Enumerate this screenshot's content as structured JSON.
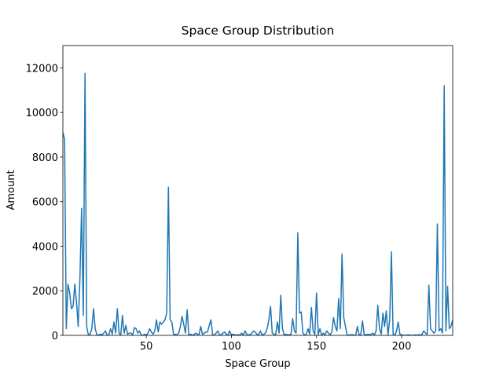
{
  "chart_data": {
    "type": "line",
    "title": "Space Group Distribution",
    "x_label": "Space Group",
    "y_label": "Amount",
    "x": [
      1,
      2,
      3,
      4,
      5,
      6,
      7,
      8,
      9,
      10,
      11,
      12,
      13,
      14,
      15,
      16,
      17,
      18,
      19,
      20,
      21,
      22,
      23,
      24,
      25,
      26,
      27,
      28,
      29,
      30,
      31,
      32,
      33,
      34,
      35,
      36,
      37,
      38,
      39,
      40,
      41,
      42,
      43,
      44,
      45,
      46,
      47,
      48,
      49,
      50,
      51,
      52,
      53,
      54,
      55,
      56,
      57,
      58,
      59,
      60,
      61,
      62,
      63,
      64,
      65,
      66,
      67,
      68,
      69,
      70,
      71,
      72,
      73,
      74,
      75,
      76,
      77,
      78,
      79,
      80,
      81,
      82,
      83,
      84,
      85,
      86,
      87,
      88,
      89,
      90,
      91,
      92,
      93,
      94,
      95,
      96,
      97,
      98,
      99,
      100,
      101,
      102,
      103,
      104,
      105,
      106,
      107,
      108,
      109,
      110,
      111,
      112,
      113,
      114,
      115,
      116,
      117,
      118,
      119,
      120,
      121,
      122,
      123,
      124,
      125,
      126,
      127,
      128,
      129,
      130,
      131,
      132,
      133,
      134,
      135,
      136,
      137,
      138,
      139,
      140,
      141,
      142,
      143,
      144,
      145,
      146,
      147,
      148,
      149,
      150,
      151,
      152,
      153,
      154,
      155,
      156,
      157,
      158,
      159,
      160,
      161,
      162,
      163,
      164,
      165,
      166,
      167,
      168,
      169,
      170,
      171,
      172,
      173,
      174,
      175,
      176,
      177,
      178,
      179,
      180,
      181,
      182,
      183,
      184,
      185,
      186,
      187,
      188,
      189,
      190,
      191,
      192,
      193,
      194,
      195,
      196,
      197,
      198,
      199,
      200,
      201,
      202,
      203,
      204,
      205,
      206,
      207,
      208,
      209,
      210,
      211,
      212,
      213,
      214,
      215,
      216,
      217,
      218,
      219,
      220,
      221,
      222,
      223,
      224,
      225,
      226,
      227,
      228,
      229,
      230
    ],
    "series": [
      {
        "color": "#1f77b4",
        "values": [
          9100,
          8800,
          300,
          2300,
          1900,
          1200,
          1300,
          2300,
          1500,
          400,
          2500,
          5700,
          900,
          11750,
          400,
          10,
          50,
          300,
          1200,
          300,
          20,
          10,
          50,
          30,
          100,
          200,
          10,
          20,
          300,
          50,
          600,
          100,
          1200,
          100,
          20,
          900,
          100,
          450,
          50,
          100,
          100,
          20,
          350,
          300,
          100,
          200,
          10,
          5,
          50,
          10,
          100,
          300,
          150,
          50,
          200,
          700,
          150,
          600,
          500,
          600,
          700,
          1000,
          6650,
          700,
          600,
          50,
          50,
          20,
          100,
          400,
          850,
          500,
          100,
          1150,
          20,
          50,
          10,
          30,
          100,
          50,
          50,
          400,
          50,
          100,
          150,
          150,
          450,
          700,
          10,
          20,
          100,
          200,
          10,
          30,
          100,
          150,
          50,
          20,
          200,
          20,
          50,
          20,
          10,
          30,
          10,
          100,
          20,
          200,
          50,
          20,
          30,
          100,
          200,
          150,
          50,
          20,
          200,
          30,
          50,
          100,
          300,
          700,
          1300,
          100,
          50,
          20,
          600,
          100,
          1800,
          300,
          20,
          50,
          20,
          30,
          50,
          750,
          200,
          100,
          4600,
          1000,
          1050,
          100,
          20,
          50,
          300,
          50,
          1250,
          200,
          30,
          1900,
          30,
          300,
          20,
          100,
          20,
          200,
          100,
          20,
          150,
          800,
          400,
          200,
          1650,
          300,
          3650,
          800,
          400,
          20,
          10,
          20,
          30,
          10,
          10,
          400,
          20,
          30,
          650,
          50,
          20,
          50,
          30,
          50,
          100,
          20,
          200,
          1350,
          300,
          50,
          1000,
          400,
          1100,
          20,
          700,
          3750,
          50,
          10,
          200,
          600,
          50,
          20,
          10,
          5,
          10,
          20,
          10,
          5,
          10,
          20,
          10,
          20,
          20,
          50,
          200,
          100,
          50,
          2250,
          300,
          200,
          100,
          200,
          5000,
          200,
          300,
          100,
          11200,
          200,
          2200,
          300,
          400,
          700
        ]
      }
    ],
    "xlim": [
      1,
      230
    ],
    "xticks": [
      50,
      100,
      150,
      200
    ],
    "ylim": [
      0,
      13000
    ],
    "yticks": [
      0,
      2000,
      4000,
      6000,
      8000,
      10000,
      12000
    ]
  }
}
